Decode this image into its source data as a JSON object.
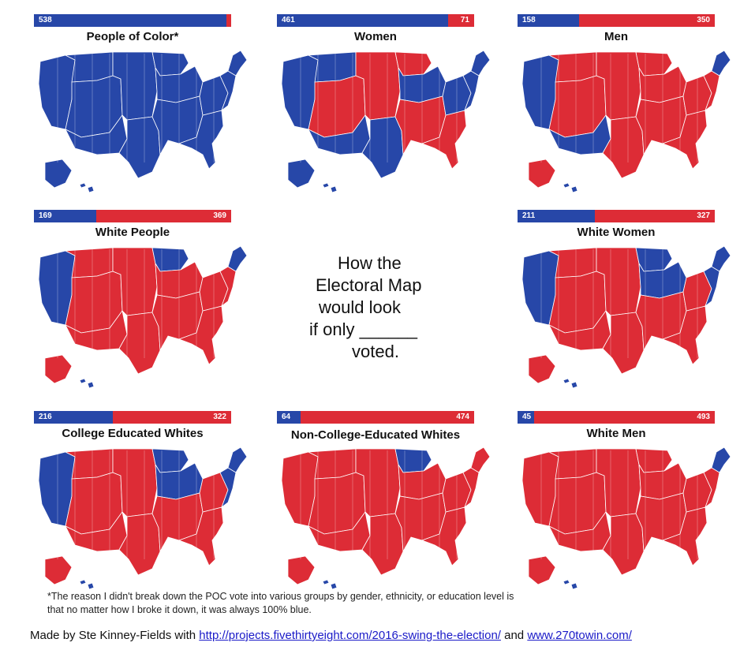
{
  "colors": {
    "dem": "#2747a8",
    "rep": "#dd2c36"
  },
  "total_electoral_votes": 538,
  "maps": [
    {
      "title": "People of Color*",
      "dem": "538",
      "rep": "",
      "dem_share": 1.0,
      "scheme": "poc"
    },
    {
      "title": "Women",
      "dem": "461",
      "rep": "71",
      "dem_share": 0.866,
      "scheme": "women"
    },
    {
      "title": "Men",
      "dem": "158",
      "rep": "350",
      "dem_share": 0.31,
      "scheme": "men"
    },
    {
      "title": "White People",
      "dem": "169",
      "rep": "369",
      "dem_share": 0.314,
      "scheme": "white"
    },
    {
      "title": "White Women",
      "dem": "211",
      "rep": "327",
      "dem_share": 0.392,
      "scheme": "whitewomen"
    },
    {
      "title": "College Educated Whites",
      "dem": "216",
      "rep": "322",
      "dem_share": 0.401,
      "scheme": "college"
    },
    {
      "title": "Non-College-Educated Whites",
      "dem": "64",
      "rep": "474",
      "dem_share": 0.119,
      "scheme": "noncollege"
    },
    {
      "title": "White Men",
      "dem": "45",
      "rep": "493",
      "dem_share": 0.084,
      "scheme": "whitemen"
    }
  ],
  "center_text": [
    "How the",
    "Electoral Map",
    "would look",
    "if only ______",
    "voted."
  ],
  "footnote": "*The reason I didn't break down the POC vote into various groups by gender, ethnicity, or education level is that no matter how I broke it down, it was always 100% blue.",
  "credit": {
    "prefix": "Made by Ste Kinney-Fields with ",
    "link1": "http://projects.fivethirtyeight.com/2016-swing-the-election/",
    "middle": " and ",
    "link2": "www.270towin.com/"
  }
}
